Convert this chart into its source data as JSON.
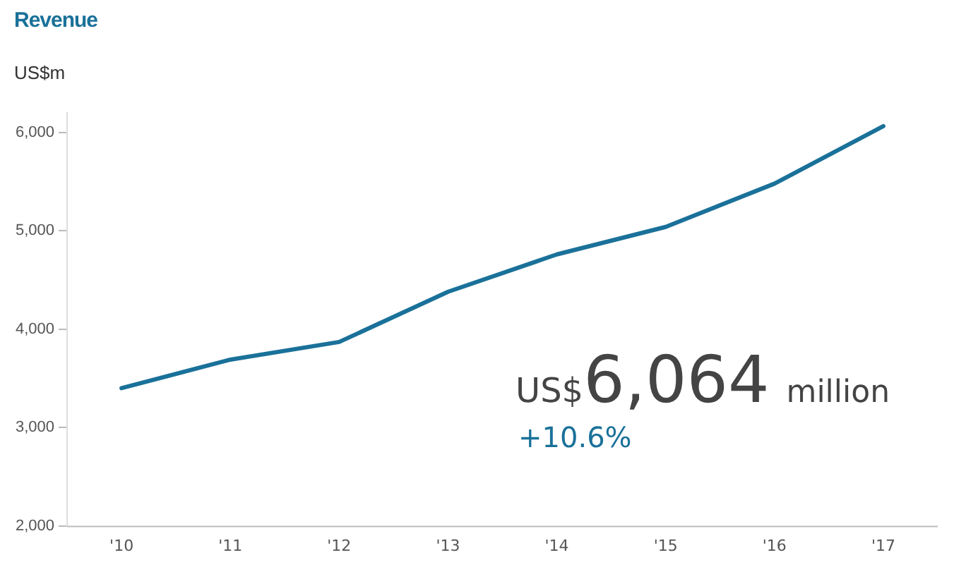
{
  "chart_data": {
    "type": "line",
    "title": "Revenue",
    "ylabel": "US$m",
    "categories": [
      "'10",
      "'11",
      "'12",
      "'13",
      "'14",
      "'15",
      "'16",
      "'17"
    ],
    "series": [
      {
        "color": "#1a7199",
        "values": [
          3400,
          3690,
          3870,
          4380,
          4760,
          5040,
          5480,
          6064
        ]
      }
    ],
    "ylim": [
      2000,
      6200
    ],
    "yticks": [
      {
        "value": 2000,
        "label": "2,000"
      },
      {
        "value": 3000,
        "label": "3,000"
      },
      {
        "value": 4000,
        "label": "4,000"
      },
      {
        "value": 5000,
        "label": "5,000"
      },
      {
        "value": 6000,
        "label": "6,000"
      }
    ],
    "grid": false,
    "legend": false,
    "marker": "none",
    "line_style": "solid",
    "annotations": [
      "US$6,064 million",
      "+10.6%"
    ]
  }
}
